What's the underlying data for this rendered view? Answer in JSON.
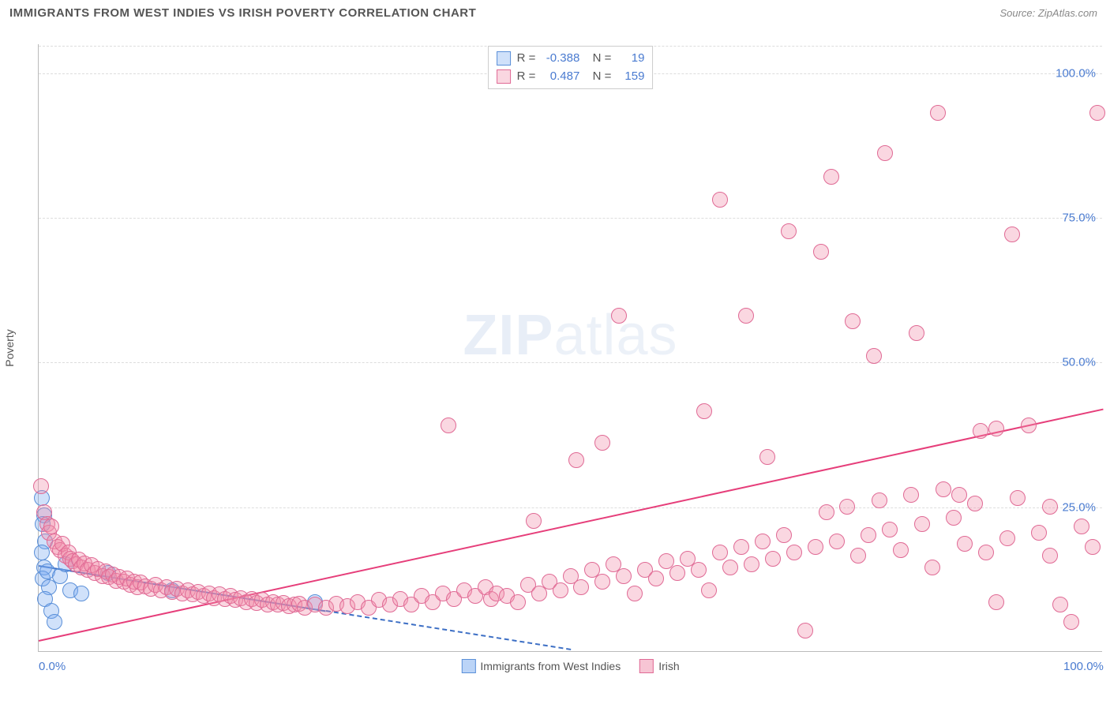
{
  "header": {
    "title": "IMMIGRANTS FROM WEST INDIES VS IRISH POVERTY CORRELATION CHART",
    "source": "Source: ZipAtlas.com"
  },
  "watermark": {
    "zip": "ZIP",
    "atlas": "atlas"
  },
  "chart": {
    "type": "scatter",
    "ylabel": "Poverty",
    "xlim": [
      0,
      100
    ],
    "ylim": [
      0,
      105
    ],
    "x_ticks": [
      {
        "value": 0,
        "label": "0.0%"
      },
      {
        "value": 100,
        "label": "100.0%"
      }
    ],
    "y_ticks": [
      {
        "value": 25,
        "label": "25.0%"
      },
      {
        "value": 50,
        "label": "50.0%"
      },
      {
        "value": 75,
        "label": "75.0%"
      },
      {
        "value": 100,
        "label": "100.0%"
      }
    ],
    "grid_color": "#dddddd",
    "axis_color": "#bbbbbb",
    "tick_label_color": "#4a7bd0",
    "background_color": "#ffffff",
    "marker_radius": 10,
    "marker_stroke_width": 1.5,
    "series": [
      {
        "name": "Immigrants from West Indies",
        "fill": "rgba(120,170,240,0.35)",
        "stroke": "#5a8fd8",
        "R": "-0.388",
        "N": "19",
        "trend": {
          "x1": 0,
          "y1": 15.0,
          "x2": 50,
          "y2": 0.5,
          "solid_until_x": 27,
          "color": "#3d6fc5",
          "width": 2
        },
        "points": [
          [
            0.3,
            26.5
          ],
          [
            0.5,
            23.5
          ],
          [
            0.4,
            22.0
          ],
          [
            0.6,
            19.0
          ],
          [
            0.3,
            17.0
          ],
          [
            0.5,
            14.5
          ],
          [
            0.4,
            12.5
          ],
          [
            0.8,
            13.8
          ],
          [
            1.0,
            11.0
          ],
          [
            0.6,
            9.0
          ],
          [
            1.2,
            7.0
          ],
          [
            1.5,
            5.0
          ],
          [
            2.0,
            13.0
          ],
          [
            2.5,
            15.0
          ],
          [
            3.0,
            10.5
          ],
          [
            4.0,
            10.0
          ],
          [
            6.5,
            13.5
          ],
          [
            12.5,
            10.5
          ],
          [
            26.0,
            8.5
          ]
        ]
      },
      {
        "name": "Irish",
        "fill": "rgba(240,140,170,0.35)",
        "stroke": "#e06a95",
        "R": "0.487",
        "N": "159",
        "trend": {
          "x1": 0,
          "y1": 2.0,
          "x2": 100,
          "y2": 42.0,
          "color": "#e63e7a",
          "width": 2.5
        },
        "points": [
          [
            0.2,
            28.5
          ],
          [
            0.5,
            24.0
          ],
          [
            0.8,
            22.0
          ],
          [
            1.0,
            20.5
          ],
          [
            1.2,
            21.5
          ],
          [
            1.5,
            19.0
          ],
          [
            1.8,
            18.0
          ],
          [
            2.0,
            17.5
          ],
          [
            2.2,
            18.5
          ],
          [
            2.5,
            16.5
          ],
          [
            2.8,
            17.0
          ],
          [
            3.0,
            16.0
          ],
          [
            3.2,
            15.5
          ],
          [
            3.5,
            15.0
          ],
          [
            3.8,
            15.8
          ],
          [
            4.0,
            14.5
          ],
          [
            4.3,
            15.2
          ],
          [
            4.6,
            14.0
          ],
          [
            5.0,
            14.8
          ],
          [
            5.3,
            13.5
          ],
          [
            5.6,
            14.2
          ],
          [
            6.0,
            13.0
          ],
          [
            6.3,
            13.8
          ],
          [
            6.6,
            12.8
          ],
          [
            7.0,
            13.2
          ],
          [
            7.3,
            12.2
          ],
          [
            7.6,
            12.8
          ],
          [
            8.0,
            12.0
          ],
          [
            8.3,
            12.5
          ],
          [
            8.6,
            11.5
          ],
          [
            9.0,
            12.0
          ],
          [
            9.3,
            11.0
          ],
          [
            9.6,
            11.8
          ],
          [
            10.0,
            11.2
          ],
          [
            10.5,
            10.8
          ],
          [
            11.0,
            11.5
          ],
          [
            11.5,
            10.5
          ],
          [
            12.0,
            11.0
          ],
          [
            12.5,
            10.2
          ],
          [
            13.0,
            10.8
          ],
          [
            13.5,
            10.0
          ],
          [
            14.0,
            10.5
          ],
          [
            14.5,
            9.8
          ],
          [
            15.0,
            10.2
          ],
          [
            15.5,
            9.5
          ],
          [
            16.0,
            10.0
          ],
          [
            16.5,
            9.2
          ],
          [
            17.0,
            9.8
          ],
          [
            17.5,
            9.0
          ],
          [
            18.0,
            9.5
          ],
          [
            18.5,
            8.8
          ],
          [
            19.0,
            9.2
          ],
          [
            19.5,
            8.5
          ],
          [
            20.0,
            9.0
          ],
          [
            20.5,
            8.3
          ],
          [
            21.0,
            8.8
          ],
          [
            21.5,
            8.0
          ],
          [
            22.0,
            8.5
          ],
          [
            22.5,
            8.0
          ],
          [
            23.0,
            8.3
          ],
          [
            23.5,
            7.8
          ],
          [
            24.0,
            8.0
          ],
          [
            24.5,
            8.2
          ],
          [
            25.0,
            7.5
          ],
          [
            26.0,
            8.0
          ],
          [
            27.0,
            7.5
          ],
          [
            28.0,
            8.2
          ],
          [
            29.0,
            7.8
          ],
          [
            30.0,
            8.5
          ],
          [
            31.0,
            7.5
          ],
          [
            32.0,
            8.8
          ],
          [
            33.0,
            8.0
          ],
          [
            34.0,
            9.0
          ],
          [
            35.0,
            8.0
          ],
          [
            36.0,
            9.5
          ],
          [
            37.0,
            8.5
          ],
          [
            38.0,
            10.0
          ],
          [
            39.0,
            9.0
          ],
          [
            40.0,
            10.5
          ],
          [
            41.0,
            9.5
          ],
          [
            42.0,
            11.0
          ],
          [
            42.5,
            9.0
          ],
          [
            43.0,
            10.0
          ],
          [
            44.0,
            9.5
          ],
          [
            45.0,
            8.5
          ],
          [
            38.5,
            39.0
          ],
          [
            46.0,
            11.5
          ],
          [
            47.0,
            10.0
          ],
          [
            48.0,
            12.0
          ],
          [
            49.0,
            10.5
          ],
          [
            50.0,
            13.0
          ],
          [
            51.0,
            11.0
          ],
          [
            46.5,
            22.5
          ],
          [
            52.0,
            14.0
          ],
          [
            53.0,
            12.0
          ],
          [
            54.0,
            15.0
          ],
          [
            55.0,
            13.0
          ],
          [
            56.0,
            10.0
          ],
          [
            57.0,
            14.0
          ],
          [
            50.5,
            33.0
          ],
          [
            58.0,
            12.5
          ],
          [
            59.0,
            15.5
          ],
          [
            60.0,
            13.5
          ],
          [
            61.0,
            16.0
          ],
          [
            62.0,
            14.0
          ],
          [
            54.5,
            58.0
          ],
          [
            63.0,
            10.5
          ],
          [
            64.0,
            17.0
          ],
          [
            65.0,
            14.5
          ],
          [
            53.0,
            36.0
          ],
          [
            66.0,
            18.0
          ],
          [
            67.0,
            15.0
          ],
          [
            68.0,
            19.0
          ],
          [
            62.5,
            41.5
          ],
          [
            69.0,
            16.0
          ],
          [
            70.0,
            20.0
          ],
          [
            66.5,
            58.0
          ],
          [
            71.0,
            17.0
          ],
          [
            72.0,
            3.5
          ],
          [
            73.0,
            18.0
          ],
          [
            64.0,
            78.0
          ],
          [
            74.0,
            24.0
          ],
          [
            75.0,
            19.0
          ],
          [
            76.0,
            25.0
          ],
          [
            68.5,
            33.5
          ],
          [
            77.0,
            16.5
          ],
          [
            78.0,
            20.0
          ],
          [
            70.5,
            72.5
          ],
          [
            79.0,
            26.0
          ],
          [
            80.0,
            21.0
          ],
          [
            73.5,
            69.0
          ],
          [
            81.0,
            17.5
          ],
          [
            82.0,
            27.0
          ],
          [
            74.5,
            82.0
          ],
          [
            83.0,
            22.0
          ],
          [
            84.0,
            14.5
          ],
          [
            76.5,
            57.0
          ],
          [
            85.0,
            28.0
          ],
          [
            86.0,
            23.0
          ],
          [
            78.5,
            51.0
          ],
          [
            87.0,
            18.5
          ],
          [
            88.0,
            25.5
          ],
          [
            79.5,
            86.0
          ],
          [
            89.0,
            17.0
          ],
          [
            90.0,
            38.5
          ],
          [
            82.5,
            55.0
          ],
          [
            91.0,
            19.5
          ],
          [
            92.0,
            26.5
          ],
          [
            84.5,
            93.0
          ],
          [
            93.0,
            39.0
          ],
          [
            94.0,
            20.5
          ],
          [
            86.5,
            27.0
          ],
          [
            95.0,
            16.5
          ],
          [
            96.0,
            8.0
          ],
          [
            88.5,
            38.0
          ],
          [
            97.0,
            5.0
          ],
          [
            98.0,
            21.5
          ],
          [
            91.5,
            72.0
          ],
          [
            99.0,
            18.0
          ],
          [
            99.5,
            93.0
          ],
          [
            95.0,
            25.0
          ],
          [
            90.0,
            8.5
          ]
        ]
      }
    ],
    "bottom_legend": [
      {
        "label": "Immigrants from West Indies",
        "fill": "rgba(120,170,240,0.5)",
        "stroke": "#5a8fd8"
      },
      {
        "label": "Irish",
        "fill": "rgba(240,140,170,0.5)",
        "stroke": "#e06a95"
      }
    ]
  }
}
